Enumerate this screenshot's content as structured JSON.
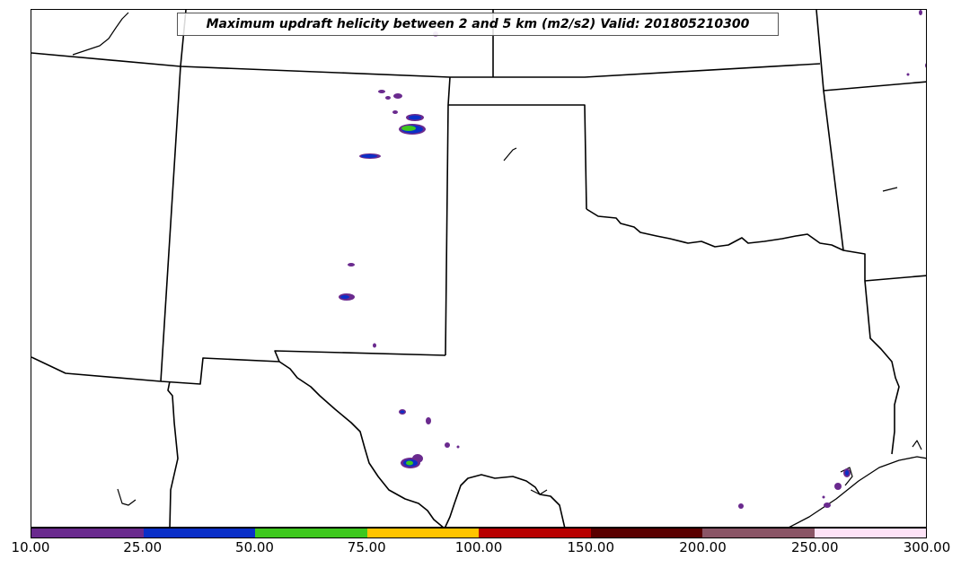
{
  "title": "Maximum updraft helicity between 2 and 5 km (m2/s2) Valid: 201805210300",
  "colorbar": {
    "ticks": [
      "10.00",
      "25.00",
      "50.00",
      "75.00",
      "100.00",
      "150.00",
      "200.00",
      "250.00",
      "300.00"
    ],
    "colors": [
      "#6a2a8e",
      "#0a2fc8",
      "#3ec81e",
      "#ffc400",
      "#b80000",
      "#5a0000",
      "#8a5566",
      "#fde2f6"
    ]
  },
  "legend_colors": {
    "lines": "#000000",
    "background": "#ffffff"
  }
}
